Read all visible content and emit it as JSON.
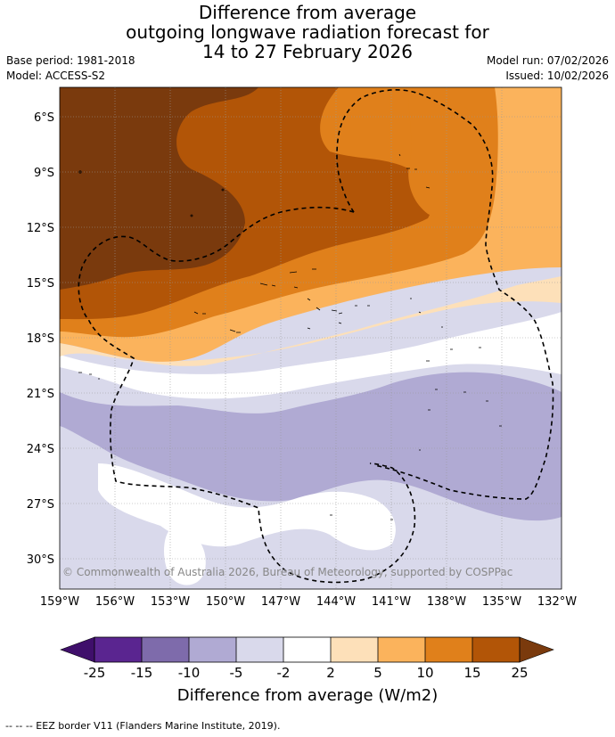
{
  "header": {
    "title_line1": "Difference from average",
    "title_line2": "outgoing longwave radiation forecast for",
    "title_line3": "14 to 27 February 2026",
    "base_period": "Base period: 1981-2018",
    "model": "Model: ACCESS-S2",
    "model_run": "Model run: 07/02/2026",
    "issued": "Issued: 10/02/2026"
  },
  "map": {
    "lat_labels": [
      "6°S",
      "9°S",
      "12°S",
      "15°S",
      "18°S",
      "21°S",
      "24°S",
      "27°S",
      "30°S"
    ],
    "lon_labels": [
      "159°W",
      "156°W",
      "153°W",
      "150°W",
      "147°W",
      "144°W",
      "141°W",
      "138°W",
      "135°W",
      "132°W"
    ],
    "copyright": "© Commonwealth of Australia 2026, Bureau of Meteorology, supported by COSPPac"
  },
  "colorbar": {
    "ticks": [
      "-25",
      "-15",
      "-10",
      "-5",
      "-2",
      "2",
      "5",
      "10",
      "15",
      "25"
    ],
    "colors": [
      "#3f0f6b",
      "#5a2590",
      "#7e6bab",
      "#b0aad3",
      "#d9d9eb",
      "#ffffff",
      "#fde0b9",
      "#fbb35c",
      "#e0801b",
      "#b25507",
      "#7a3a0d"
    ],
    "title": "Difference from average (W/m2)"
  },
  "footer": {
    "legend": "-- -- -- EEZ border V11 (Flanders Marine Institute, 2019)."
  }
}
